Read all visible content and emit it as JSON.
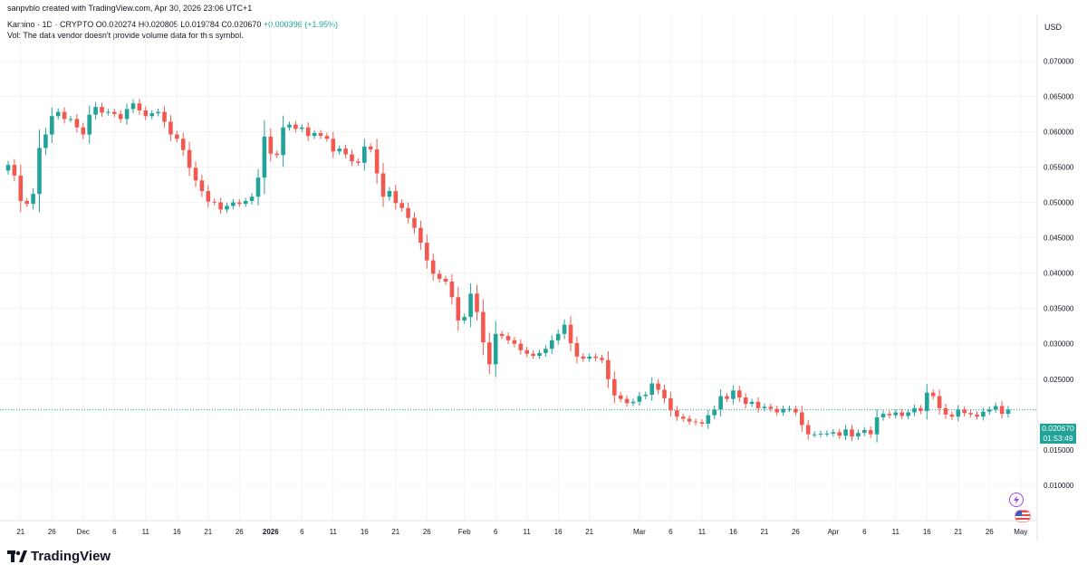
{
  "header": {
    "credit": "sanpvblo created with TradingView.com, Apr 30, 2026 23:06 UTC+1",
    "symbol": "Kamino · 1D · CRYPTO",
    "ohlc": "O0.020274 H0.020805 L0.019784 C0.020670",
    "change": "+0.000396 (+1.95%)",
    "volume_note": "Vol: The data vendor doesn't provide volume data for this symbol."
  },
  "currency": "USD",
  "price_tag": {
    "price": "0.020670",
    "countdown": "01:53:49",
    "color": "#22a39a"
  },
  "footer": {
    "logo_text": "TradingView"
  },
  "icons": {
    "logo": "tradingview-logo-icon",
    "bolt": "lightning-bolt-icon",
    "flag": "us-flag-icon"
  },
  "colors": {
    "up": "#22a39a",
    "down": "#f2584f",
    "last_price_line": "#22a39a"
  },
  "chart_data": {
    "type": "candlestick",
    "title": "",
    "xlabel": "",
    "ylabel": "",
    "ylim": [
      0.005,
      0.0735
    ],
    "y_ticks": [
      "0.070000",
      "0.065000",
      "0.060000",
      "0.055000",
      "0.050000",
      "0.045000",
      "0.040000",
      "0.035000",
      "0.030000",
      "0.025000",
      "0.015000",
      "0.010000"
    ],
    "x_ticks": [
      {
        "label": "21",
        "index": 2
      },
      {
        "label": "26",
        "index": 7
      },
      {
        "label": "Dec",
        "index": 12
      },
      {
        "label": "6",
        "index": 17
      },
      {
        "label": "11",
        "index": 22
      },
      {
        "label": "16",
        "index": 27
      },
      {
        "label": "21",
        "index": 32
      },
      {
        "label": "26",
        "index": 37
      },
      {
        "label": "2026",
        "index": 42
      },
      {
        "label": "6",
        "index": 47
      },
      {
        "label": "11",
        "index": 52
      },
      {
        "label": "16",
        "index": 57
      },
      {
        "label": "21",
        "index": 62
      },
      {
        "label": "26",
        "index": 67
      },
      {
        "label": "Feb",
        "index": 73
      },
      {
        "label": "6",
        "index": 78
      },
      {
        "label": "11",
        "index": 83
      },
      {
        "label": "16",
        "index": 88
      },
      {
        "label": "21",
        "index": 93
      },
      {
        "label": "Mar",
        "index": 101
      },
      {
        "label": "6",
        "index": 106
      },
      {
        "label": "11",
        "index": 111
      },
      {
        "label": "16",
        "index": 116
      },
      {
        "label": "21",
        "index": 121
      },
      {
        "label": "26",
        "index": 126
      },
      {
        "label": "Apr",
        "index": 132
      },
      {
        "label": "6",
        "index": 137
      },
      {
        "label": "11",
        "index": 142
      },
      {
        "label": "16",
        "index": 147
      },
      {
        "label": "21",
        "index": 152
      },
      {
        "label": "26",
        "index": 157
      },
      {
        "label": "May",
        "index": 162
      }
    ],
    "last_price": 0.02067,
    "closes": [
      0.0553,
      0.0538,
      0.0502,
      0.0498,
      0.0512,
      0.0577,
      0.0596,
      0.0622,
      0.0628,
      0.0618,
      0.0618,
      0.0606,
      0.0596,
      0.0624,
      0.0635,
      0.0627,
      0.0628,
      0.0625,
      0.0618,
      0.0632,
      0.064,
      0.063,
      0.0622,
      0.0626,
      0.0628,
      0.0614,
      0.0596,
      0.059,
      0.0574,
      0.0549,
      0.0531,
      0.0516,
      0.0501,
      0.05,
      0.049,
      0.0495,
      0.05,
      0.0498,
      0.0502,
      0.0508,
      0.0535,
      0.0593,
      0.0569,
      0.0567,
      0.0606,
      0.061,
      0.0604,
      0.0606,
      0.0594,
      0.0598,
      0.0594,
      0.059,
      0.0572,
      0.0576,
      0.0568,
      0.0558,
      0.0556,
      0.0579,
      0.0575,
      0.0541,
      0.0508,
      0.0516,
      0.0499,
      0.0492,
      0.0478,
      0.0464,
      0.0443,
      0.0418,
      0.0399,
      0.0392,
      0.0388,
      0.0366,
      0.0333,
      0.0338,
      0.0371,
      0.0345,
      0.0302,
      0.0271,
      0.0314,
      0.0311,
      0.0305,
      0.03,
      0.0291,
      0.0286,
      0.0283,
      0.0287,
      0.0293,
      0.0305,
      0.0314,
      0.0327,
      0.0301,
      0.0282,
      0.0279,
      0.0282,
      0.028,
      0.0277,
      0.025,
      0.0227,
      0.0222,
      0.0216,
      0.0218,
      0.0226,
      0.0228,
      0.0244,
      0.0235,
      0.0223,
      0.0206,
      0.0197,
      0.0194,
      0.019,
      0.0189,
      0.0187,
      0.0199,
      0.0207,
      0.0226,
      0.0222,
      0.0234,
      0.0224,
      0.0215,
      0.0218,
      0.0209,
      0.0211,
      0.0208,
      0.0203,
      0.0208,
      0.0208,
      0.0203,
      0.0185,
      0.0172,
      0.0172,
      0.0173,
      0.0173,
      0.0175,
      0.017,
      0.0179,
      0.0169,
      0.0174,
      0.0178,
      0.0172,
      0.0196,
      0.0201,
      0.0199,
      0.0203,
      0.0198,
      0.0203,
      0.0209,
      0.0205,
      0.0231,
      0.0226,
      0.0209,
      0.02,
      0.0197,
      0.0207,
      0.0202,
      0.02,
      0.0197,
      0.0204,
      0.0207,
      0.0212,
      0.0201,
      0.0207
    ]
  }
}
